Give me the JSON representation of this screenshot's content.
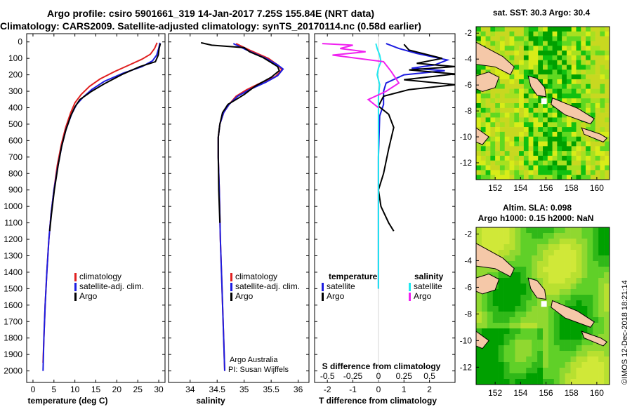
{
  "header": {
    "line1": "Argo profile: csiro 5901661_319 14-Jan-2017 7.25S 155.84E (NRT data)",
    "line2": "Climatology: CARS2009. Satellite-adjusted climatology: synTS_20170114.nc (0.58d earlier)"
  },
  "colors": {
    "climatology": "#e02020",
    "satellite": "#1c1ce0",
    "argo": "#000000",
    "sal_satellite": "#20e8f0",
    "sal_argo": "#f020f0",
    "land": "#f5c8a8"
  },
  "depth_axis": {
    "ticks": [
      "0",
      "100",
      "200",
      "300",
      "400",
      "500",
      "600",
      "700",
      "800",
      "900",
      "1000",
      "1100",
      "1200",
      "1300",
      "1400",
      "1500",
      "1600",
      "1700",
      "1800",
      "1900",
      "2000"
    ],
    "values": [
      0,
      100,
      200,
      300,
      400,
      500,
      600,
      700,
      800,
      900,
      1000,
      1100,
      1200,
      1300,
      1400,
      1500,
      1600,
      1700,
      1800,
      1900,
      2000
    ],
    "range": [
      -50,
      2070
    ]
  },
  "chart_data": [
    {
      "type": "line",
      "id": "temperature",
      "xlabel": "temperature (deg C)",
      "xlim": [
        -1.5,
        31.5
      ],
      "xticks": [
        0,
        5,
        10,
        15,
        20,
        25,
        30
      ],
      "xtick_labels": [
        "0",
        "5",
        "10",
        "15",
        "20",
        "25",
        "30"
      ],
      "legend": [
        "climatology",
        "satellite-adj. clim.",
        "Argo"
      ],
      "series": [
        {
          "name": "climatology",
          "color": "#e02020",
          "points": [
            [
              29.6,
              5
            ],
            [
              29.0,
              40
            ],
            [
              28.0,
              75
            ],
            [
              26.0,
              105
            ],
            [
              23.0,
              140
            ],
            [
              19.5,
              180
            ],
            [
              16.0,
              225
            ],
            [
              13.5,
              270
            ],
            [
              11.5,
              320
            ],
            [
              10.0,
              370
            ],
            [
              9.0,
              430
            ],
            [
              7.8,
              520
            ],
            [
              6.8,
              620
            ],
            [
              5.8,
              750
            ],
            [
              5.0,
              900
            ],
            [
              4.3,
              1050
            ],
            [
              3.8,
              1200
            ],
            [
              3.3,
              1400
            ],
            [
              2.9,
              1600
            ],
            [
              2.6,
              1800
            ],
            [
              2.4,
              1950
            ]
          ]
        },
        {
          "name": "satellite-adj. clim.",
          "color": "#1c1ce0",
          "points": [
            [
              30.3,
              5
            ],
            [
              30.0,
              40
            ],
            [
              29.5,
              80
            ],
            [
              28.5,
              115
            ],
            [
              26.0,
              150
            ],
            [
              21.5,
              190
            ],
            [
              17.0,
              240
            ],
            [
              14.0,
              290
            ],
            [
              12.0,
              335
            ],
            [
              10.4,
              380
            ],
            [
              9.2,
              440
            ],
            [
              7.9,
              530
            ],
            [
              6.9,
              630
            ],
            [
              5.9,
              760
            ],
            [
              5.0,
              900
            ],
            [
              4.3,
              1050
            ],
            [
              3.8,
              1200
            ],
            [
              3.3,
              1400
            ],
            [
              2.9,
              1600
            ],
            [
              2.6,
              1800
            ],
            [
              2.4,
              2000
            ]
          ]
        },
        {
          "name": "Argo",
          "color": "#000000",
          "points": [
            [
              30.4,
              10
            ],
            [
              30.1,
              40
            ],
            [
              29.9,
              80
            ],
            [
              29.2,
              120
            ],
            [
              25.5,
              150
            ],
            [
              21.5,
              195
            ],
            [
              17.0,
              255
            ],
            [
              14.0,
              300
            ],
            [
              11.2,
              350
            ],
            [
              10.0,
              395
            ],
            [
              9.0,
              450
            ],
            [
              7.8,
              540
            ],
            [
              6.8,
              640
            ],
            [
              6.0,
              750
            ],
            [
              5.1,
              900
            ],
            [
              4.4,
              1050
            ],
            [
              4.0,
              1150
            ]
          ]
        }
      ]
    },
    {
      "type": "line",
      "id": "salinity",
      "xlabel": "salinity",
      "xlim": [
        33.6,
        36.2
      ],
      "xticks": [
        34,
        34.5,
        35,
        35.5,
        36
      ],
      "xtick_labels": [
        "34",
        "34.5",
        "35",
        "35.5",
        "36"
      ],
      "legend": [
        "climatology",
        "satellite-adj. clim.",
        "Argo"
      ],
      "annotation": [
        "Argo Australia",
        "PI: Susan Wijffels"
      ],
      "series": [
        {
          "name": "climatology",
          "color": "#e02020",
          "points": [
            [
              34.85,
              10
            ],
            [
              35.1,
              50
            ],
            [
              35.45,
              100
            ],
            [
              35.62,
              140
            ],
            [
              35.7,
              170
            ],
            [
              35.58,
              210
            ],
            [
              35.3,
              250
            ],
            [
              35.05,
              290
            ],
            [
              34.85,
              330
            ],
            [
              34.72,
              380
            ],
            [
              34.62,
              430
            ],
            [
              34.55,
              500
            ],
            [
              34.52,
              580
            ],
            [
              34.52,
              700
            ],
            [
              34.54,
              900
            ],
            [
              34.56,
              1200
            ],
            [
              34.59,
              1500
            ],
            [
              34.62,
              1800
            ],
            [
              34.64,
              2000
            ]
          ]
        },
        {
          "name": "satellite-adj. clim.",
          "color": "#1c1ce0",
          "points": [
            [
              34.8,
              10
            ],
            [
              35.05,
              50
            ],
            [
              35.4,
              100
            ],
            [
              35.62,
              140
            ],
            [
              35.72,
              165
            ],
            [
              35.62,
              205
            ],
            [
              35.4,
              245
            ],
            [
              35.1,
              290
            ],
            [
              34.88,
              330
            ],
            [
              34.72,
              380
            ],
            [
              34.62,
              430
            ],
            [
              34.55,
              500
            ],
            [
              34.52,
              580
            ],
            [
              34.52,
              700
            ],
            [
              34.54,
              900
            ],
            [
              34.56,
              1200
            ],
            [
              34.59,
              1500
            ],
            [
              34.62,
              1800
            ],
            [
              34.64,
              2000
            ]
          ]
        },
        {
          "name": "Argo",
          "color": "#000000",
          "points": [
            [
              34.2,
              5
            ],
            [
              34.4,
              20
            ],
            [
              35.0,
              35
            ],
            [
              35.1,
              60
            ],
            [
              35.35,
              95
            ],
            [
              35.62,
              150
            ],
            [
              35.65,
              175
            ],
            [
              35.5,
              215
            ],
            [
              35.2,
              270
            ],
            [
              35.0,
              320
            ],
            [
              34.85,
              350
            ],
            [
              34.7,
              380
            ],
            [
              34.6,
              430
            ],
            [
              34.55,
              500
            ],
            [
              34.52,
              580
            ],
            [
              34.52,
              700
            ],
            [
              34.53,
              900
            ],
            [
              34.55,
              1100
            ]
          ]
        }
      ]
    },
    {
      "type": "line",
      "id": "difference",
      "xlabel": "T difference from climatology",
      "xlabel_top": "S difference from climatology",
      "xlim": [
        -2.5,
        3.0
      ],
      "xticks": [
        -2,
        -1,
        0,
        1,
        2
      ],
      "xtick_labels": [
        "-2",
        "-1",
        "0",
        "1",
        "2"
      ],
      "s_ticks": [
        -0.5,
        -0.25,
        0,
        0.25,
        0.5
      ],
      "s_tick_labels": [
        "-0.5",
        "-0.25",
        "0",
        "0.25",
        "0.5"
      ],
      "legend_titles": [
        "temperature",
        "salinity"
      ],
      "legend_left": [
        "satellite",
        "Argo"
      ],
      "legend_right": [
        "satellite",
        "Argo"
      ],
      "series": [
        {
          "name": "temperature satellite",
          "color": "#1c1ce0",
          "points": [
            [
              0.3,
              10
            ],
            [
              0.8,
              40
            ],
            [
              1.5,
              70
            ],
            [
              2.7,
              110
            ],
            [
              2.2,
              140
            ],
            [
              1.3,
              160
            ],
            [
              2.6,
              175
            ],
            [
              1.0,
              200
            ],
            [
              0.3,
              250
            ],
            [
              0.2,
              300
            ],
            [
              0.2,
              380
            ],
            [
              0.05,
              450
            ],
            [
              0.0,
              700
            ],
            [
              0.0,
              1000
            ],
            [
              0.0,
              1500
            ]
          ]
        },
        {
          "name": "temperature Argo",
          "color": "#000000",
          "points": [
            [
              1.0,
              15
            ],
            [
              1.2,
              50
            ],
            [
              2.5,
              100
            ],
            [
              1.5,
              130
            ],
            [
              3.0,
              150
            ],
            [
              1.2,
              170
            ],
            [
              3.0,
              195
            ],
            [
              1.0,
              230
            ],
            [
              3.0,
              260
            ],
            [
              1.2,
              290
            ],
            [
              0.2,
              330
            ],
            [
              0.0,
              390
            ],
            [
              0.4,
              440
            ],
            [
              0.6,
              520
            ],
            [
              0.4,
              650
            ],
            [
              0.2,
              800
            ],
            [
              0.0,
              900
            ],
            [
              0.1,
              1000
            ],
            [
              0.4,
              1100
            ],
            [
              0.6,
              1150
            ]
          ]
        },
        {
          "name": "salinity satellite",
          "color": "#20e8f0",
          "points": [
            [
              -0.1,
              10
            ],
            [
              -0.05,
              40
            ],
            [
              0.05,
              80
            ],
            [
              0.1,
              120
            ],
            [
              0.0,
              160
            ],
            [
              -0.05,
              200
            ],
            [
              0.05,
              260
            ],
            [
              0.0,
              330
            ],
            [
              0.0,
              450
            ],
            [
              0.0,
              700
            ],
            [
              0.0,
              1000
            ],
            [
              0.0,
              1500
            ]
          ]
        },
        {
          "name": "salinity Argo",
          "color": "#f020f0",
          "points": [
            [
              -2.2,
              10
            ],
            [
              -1.0,
              20
            ],
            [
              -1.5,
              40
            ],
            [
              -0.5,
              60
            ],
            [
              -1.8,
              80
            ],
            [
              0.2,
              120
            ],
            [
              0.5,
              180
            ],
            [
              0.8,
              250
            ],
            [
              0.3,
              300
            ],
            [
              -0.4,
              350
            ],
            [
              0.0,
              400
            ]
          ]
        }
      ]
    },
    {
      "type": "heatmap",
      "id": "sst-map",
      "title": "sat. SST: 30.3 Argo: 30.4",
      "xlim": [
        150.5,
        161.0
      ],
      "ylim": [
        -13.3,
        -1.5
      ],
      "xticks": [
        152,
        154,
        156,
        158,
        160
      ],
      "yticks": [
        -2,
        -4,
        -6,
        -8,
        -10,
        -12
      ],
      "palette": [
        "#00a000",
        "#10c010",
        "#60d820",
        "#a8e020",
        "#d8ec18",
        "#c8d820"
      ]
    },
    {
      "type": "heatmap",
      "id": "sla-map",
      "title": "Altim. SLA: 0.098",
      "subtitle": "Argo h1000: 0.15 h2000: NaN",
      "xlim": [
        150.5,
        161.0
      ],
      "ylim": [
        -13.3,
        -1.5
      ],
      "xticks": [
        152,
        154,
        156,
        158,
        160
      ],
      "yticks": [
        -2,
        -4,
        -6,
        -8,
        -10,
        -12
      ],
      "palette": [
        "#00a000",
        "#30b818",
        "#60d028",
        "#90d830",
        "#b8e030",
        "#d0e838"
      ]
    }
  ],
  "float_position": {
    "lon": 155.84,
    "lat": -7.25
  },
  "watermark": "©IMOS 12-Dec-2018 18:21:14"
}
